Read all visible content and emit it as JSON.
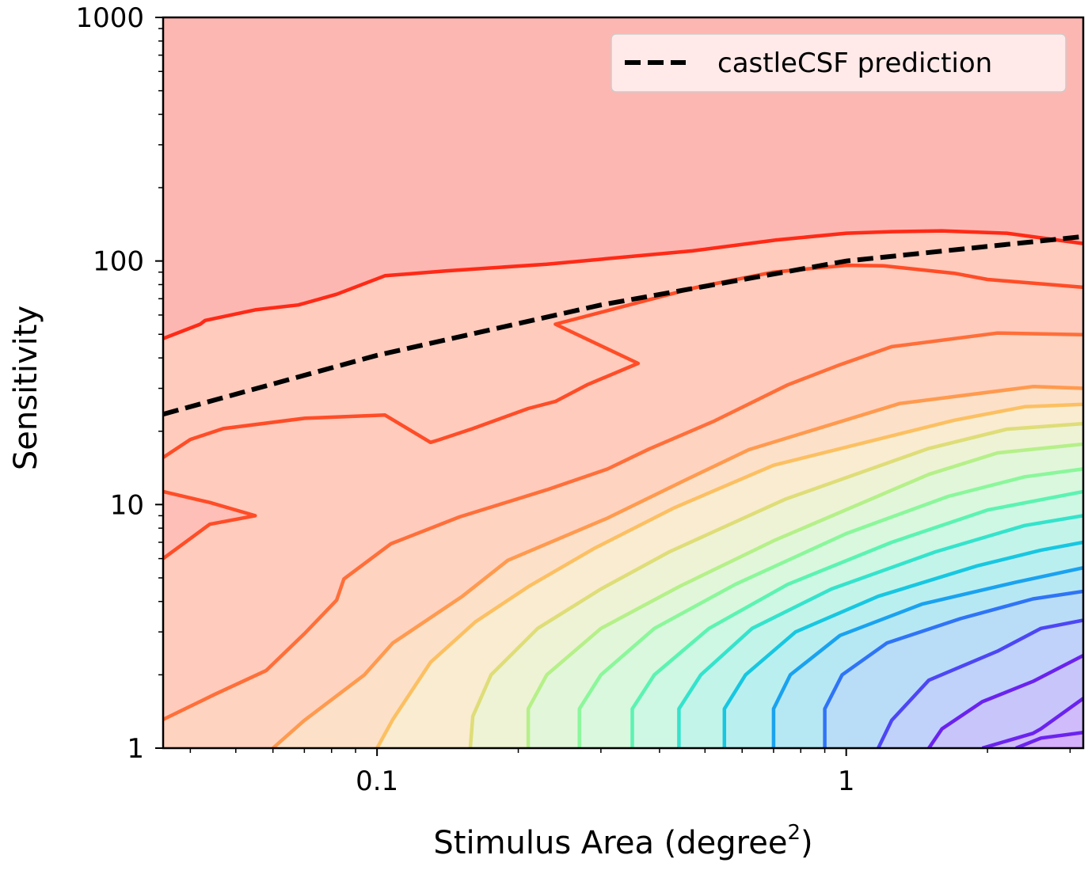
{
  "chart_data": {
    "type": "contour",
    "xlabel": "Stimulus Area (degree",
    "xlabel_superscript": "2",
    "xlabel_close": ")",
    "ylabel": "Sensitivity",
    "xscale": "log",
    "yscale": "log",
    "xlim": [
      0.035,
      3.2
    ],
    "ylim": [
      1,
      1000
    ],
    "x_ticks": [
      0.1,
      1
    ],
    "x_tick_labels": [
      "0.1",
      "1"
    ],
    "y_ticks": [
      1,
      10,
      100,
      1000
    ],
    "y_tick_labels": [
      "1",
      "10",
      "100",
      "1000"
    ],
    "grid": false,
    "legend": {
      "position": "top-right",
      "entries": [
        "castleCSF prediction"
      ]
    },
    "prediction_line": {
      "name": "castleCSF prediction",
      "style": "dashed",
      "color": "#000000",
      "points": [
        [
          0.035,
          23.5
        ],
        [
          0.1,
          41
        ],
        [
          0.3,
          66
        ],
        [
          1.0,
          100
        ],
        [
          3.2,
          126
        ]
      ]
    },
    "contour_colors": [
      "#ff2a16",
      "#ff4d27",
      "#ff6f39",
      "#ff9a4e",
      "#fcc062",
      "#dedd78",
      "#b5f089",
      "#8af79b",
      "#5cf3b2",
      "#34e3cc",
      "#17c7e1",
      "#1aa2f0",
      "#2f74f7",
      "#4d47f5",
      "#6b23ef"
    ],
    "contour_levels": [
      [
        [
          0.035,
          48
        ],
        [
          0.042,
          55
        ],
        [
          0.043,
          57
        ],
        [
          0.055,
          63
        ],
        [
          0.068,
          66
        ],
        [
          0.082,
          73
        ],
        [
          0.104,
          87
        ],
        [
          0.14,
          91
        ],
        [
          0.23,
          97
        ],
        [
          0.47,
          110
        ],
        [
          0.71,
          122
        ],
        [
          1.0,
          130
        ],
        [
          1.25,
          132
        ],
        [
          1.6,
          133
        ],
        [
          2.2,
          130
        ],
        [
          3.2,
          118
        ]
      ],
      [
        [
          0.035,
          6.0
        ],
        [
          0.044,
          8.3
        ],
        [
          0.055,
          9.0
        ],
        [
          0.044,
          10.2
        ],
        [
          0.035,
          11.3
        ],
        null,
        [
          0.035,
          15.6
        ],
        [
          0.04,
          18.5
        ],
        [
          0.047,
          20.5
        ],
        [
          0.07,
          22.6
        ],
        [
          0.104,
          23.3
        ],
        [
          0.13,
          18.0
        ],
        [
          0.135,
          18.4
        ],
        [
          0.16,
          20.5
        ],
        [
          0.21,
          24.8
        ],
        [
          0.24,
          26.5
        ],
        [
          0.28,
          31.0
        ],
        [
          0.36,
          38.0
        ],
        [
          0.24,
          55.0
        ],
        [
          0.48,
          78.0
        ],
        [
          0.7,
          90.0
        ],
        [
          1.0,
          96.0
        ],
        [
          1.2,
          95.5
        ],
        [
          1.7,
          89.0
        ],
        [
          2.0,
          84.0
        ],
        [
          3.2,
          78.0
        ]
      ],
      [
        [
          0.035,
          1.31
        ],
        [
          0.045,
          1.66
        ],
        [
          0.058,
          2.08
        ],
        [
          0.07,
          2.95
        ],
        [
          0.082,
          4.05
        ],
        [
          0.085,
          4.95
        ],
        [
          0.107,
          6.9
        ],
        [
          0.15,
          8.9
        ],
        [
          0.23,
          11.5
        ],
        [
          0.31,
          14.0
        ],
        [
          0.38,
          16.9
        ],
        [
          0.52,
          21.9
        ],
        [
          0.75,
          31.0
        ],
        [
          0.97,
          37.5
        ],
        [
          1.25,
          44.5
        ],
        [
          2.1,
          50.6
        ],
        [
          3.2,
          49.8
        ]
      ],
      [
        [
          0.06,
          1.0
        ],
        [
          0.07,
          1.3
        ],
        [
          0.094,
          2.0
        ],
        [
          0.108,
          2.7
        ],
        [
          0.152,
          4.2
        ],
        [
          0.19,
          5.9
        ],
        [
          0.31,
          8.8
        ],
        [
          0.45,
          12.5
        ],
        [
          0.62,
          16.8
        ],
        [
          1.3,
          26.0
        ],
        [
          2.5,
          30.5
        ],
        [
          3.2,
          30.0
        ]
      ],
      [
        [
          0.1,
          1.0
        ],
        [
          0.108,
          1.31
        ],
        [
          0.13,
          2.25
        ],
        [
          0.162,
          3.3
        ],
        [
          0.21,
          4.6
        ],
        [
          0.29,
          6.6
        ],
        [
          0.43,
          9.7
        ],
        [
          0.7,
          14.5
        ],
        [
          1.7,
          22.2
        ],
        [
          2.4,
          25.2
        ],
        [
          3.2,
          25.8
        ]
      ],
      [
        [
          0.158,
          1.0
        ],
        [
          0.16,
          1.35
        ],
        [
          0.175,
          2.0
        ],
        [
          0.22,
          3.1
        ],
        [
          0.3,
          4.5
        ],
        [
          0.42,
          6.4
        ],
        [
          0.74,
          10.5
        ],
        [
          1.5,
          17.0
        ],
        [
          2.2,
          20.4
        ],
        [
          3.2,
          21.5
        ]
      ],
      [
        [
          0.21,
          1.0
        ],
        [
          0.21,
          1.45
        ],
        [
          0.23,
          2.0
        ],
        [
          0.3,
          3.1
        ],
        [
          0.44,
          4.6
        ],
        [
          0.7,
          7.1
        ],
        [
          1.5,
          13.3
        ],
        [
          2.1,
          16.3
        ],
        [
          3.2,
          17.7
        ]
      ],
      [
        [
          0.27,
          1.0
        ],
        [
          0.27,
          1.45
        ],
        [
          0.3,
          2.0
        ],
        [
          0.39,
          3.1
        ],
        [
          0.58,
          4.7
        ],
        [
          1.0,
          7.6
        ],
        [
          1.65,
          10.8
        ],
        [
          2.4,
          13.0
        ],
        [
          3.2,
          14.0
        ]
      ],
      [
        [
          0.35,
          1.0
        ],
        [
          0.35,
          1.45
        ],
        [
          0.39,
          2.0
        ],
        [
          0.51,
          3.1
        ],
        [
          0.75,
          4.7
        ],
        [
          1.25,
          7.0
        ],
        [
          2.0,
          9.5
        ],
        [
          3.2,
          11.3
        ]
      ],
      [
        [
          0.44,
          1.0
        ],
        [
          0.44,
          1.45
        ],
        [
          0.49,
          2.0
        ],
        [
          0.63,
          3.1
        ],
        [
          0.93,
          4.5
        ],
        [
          1.55,
          6.4
        ],
        [
          2.4,
          8.2
        ],
        [
          3.2,
          9.0
        ]
      ],
      [
        [
          0.55,
          1.0
        ],
        [
          0.55,
          1.45
        ],
        [
          0.61,
          2.0
        ],
        [
          0.78,
          3.0
        ],
        [
          1.17,
          4.2
        ],
        [
          1.9,
          5.6
        ],
        [
          2.6,
          6.5
        ],
        [
          3.2,
          7.0
        ]
      ],
      [
        [
          0.7,
          1.0
        ],
        [
          0.7,
          1.45
        ],
        [
          0.76,
          2.0
        ],
        [
          0.97,
          2.9
        ],
        [
          1.45,
          3.9
        ],
        [
          2.3,
          4.8
        ],
        [
          3.2,
          5.5
        ]
      ],
      [
        [
          0.9,
          1.0
        ],
        [
          0.9,
          1.45
        ],
        [
          0.98,
          2.0
        ],
        [
          1.22,
          2.7
        ],
        [
          1.75,
          3.4
        ],
        [
          2.5,
          4.1
        ],
        [
          3.2,
          4.4
        ]
      ],
      [
        [
          1.17,
          1.0
        ],
        [
          1.25,
          1.3
        ],
        [
          1.5,
          1.9
        ],
        [
          2.1,
          2.5
        ],
        [
          2.6,
          3.1
        ],
        [
          3.2,
          3.35
        ]
      ],
      [
        [
          1.5,
          1.0
        ],
        [
          1.6,
          1.2
        ],
        [
          1.95,
          1.55
        ],
        [
          2.5,
          1.88
        ],
        [
          3.2,
          2.4
        ]
      ],
      [
        [
          1.95,
          1.0
        ],
        [
          2.5,
          1.15
        ],
        [
          2.6,
          1.2
        ],
        [
          3.2,
          1.6
        ]
      ],
      [
        [
          2.3,
          1.0
        ],
        [
          2.6,
          1.1
        ],
        [
          3.2,
          1.16
        ]
      ]
    ]
  },
  "legend_label": "castleCSF prediction"
}
